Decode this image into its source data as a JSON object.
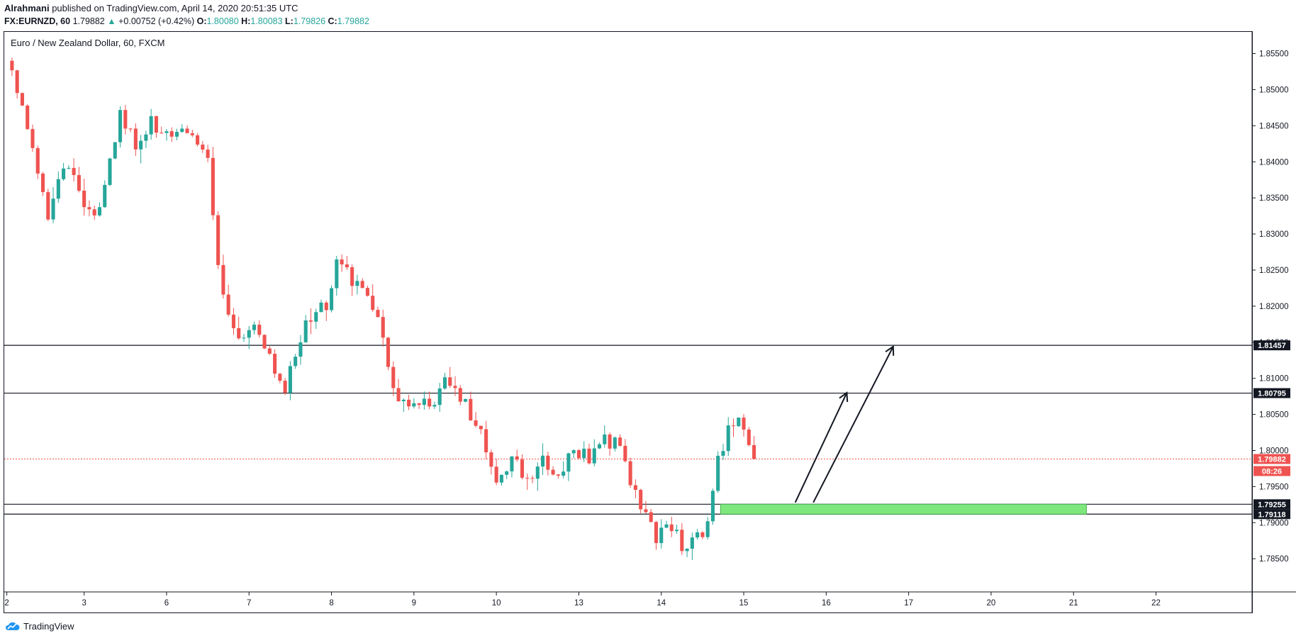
{
  "header": {
    "author": "Alrahmani",
    "published_text": "published on TradingView.com, April 14, 2020 20:51:35 UTC"
  },
  "ohlc": {
    "symbol": "FX:EURNZD, 60",
    "last": "1.79882",
    "change": "+0.00752 (+0.42%)",
    "o_label": "O:",
    "o_value": "1.80080",
    "h_label": "H:",
    "h_value": "1.80083",
    "l_label": "L:",
    "l_value": "1.79826",
    "c_label": "C:",
    "c_value": "1.79882"
  },
  "footer": {
    "brand": "TradingView"
  },
  "colors": {
    "up": "#26a69a",
    "down": "#ef5350",
    "zone": "#7ee87e",
    "zone_border": "#4caf50",
    "price_line": "#ef5350",
    "level_line": "#131722"
  },
  "chart_data": {
    "type": "candlestick",
    "title": "Euro / New Zealand Dollar, 60, FXCM",
    "instrument": "EUR/NZD",
    "timeframe": "60",
    "ylim": [
      1.7805,
      1.858
    ],
    "y_ticks": [
      "1.78500",
      "1.79000",
      "1.79500",
      "1.80000",
      "1.80500",
      "1.81000",
      "1.81500",
      "1.82000",
      "1.82500",
      "1.83000",
      "1.83500",
      "1.84000",
      "1.84500",
      "1.85000",
      "1.85500"
    ],
    "x_ticks": [
      {
        "label": "2",
        "bar": -1
      },
      {
        "label": "3",
        "bar": 14
      },
      {
        "label": "6",
        "bar": 30
      },
      {
        "label": "7",
        "bar": 46
      },
      {
        "label": "8",
        "bar": 62
      },
      {
        "label": "9",
        "bar": 78
      },
      {
        "label": "10",
        "bar": 94
      },
      {
        "label": "13",
        "bar": 110
      },
      {
        "label": "14",
        "bar": 126
      },
      {
        "label": "15",
        "bar": 142
      },
      {
        "label": "16",
        "bar": 158
      },
      {
        "label": "17",
        "bar": 174
      },
      {
        "label": "20",
        "bar": 190
      },
      {
        "label": "21",
        "bar": 206
      },
      {
        "label": "22",
        "bar": 222
      }
    ],
    "x_range": [
      -1.5,
      240.5
    ],
    "close_path": [
      [
        0,
        1.8525
      ],
      [
        3,
        1.845
      ],
      [
        7,
        1.833
      ],
      [
        11,
        1.84
      ],
      [
        14,
        1.8335
      ],
      [
        17,
        1.833
      ],
      [
        21,
        1.847
      ],
      [
        24,
        1.842
      ],
      [
        27,
        1.8455
      ],
      [
        30,
        1.844
      ],
      [
        35,
        1.844
      ],
      [
        38,
        1.841
      ],
      [
        40,
        1.825
      ],
      [
        42,
        1.819
      ],
      [
        44,
        1.815
      ],
      [
        47,
        1.8175
      ],
      [
        50,
        1.813
      ],
      [
        53,
        1.809
      ],
      [
        57,
        1.818
      ],
      [
        61,
        1.82
      ],
      [
        63,
        1.827
      ],
      [
        66,
        1.824
      ],
      [
        69,
        1.822
      ],
      [
        71,
        1.818
      ],
      [
        73,
        1.812
      ],
      [
        75,
        1.806
      ],
      [
        78,
        1.806
      ],
      [
        82,
        1.807
      ],
      [
        85,
        1.81
      ],
      [
        88,
        1.806
      ],
      [
        91,
        1.802
      ],
      [
        94,
        1.796
      ],
      [
        97,
        1.799
      ],
      [
        100,
        1.796
      ],
      [
        103,
        1.7995
      ],
      [
        106,
        1.796
      ],
      [
        109,
        1.8
      ],
      [
        112,
        1.799
      ],
      [
        115,
        1.8015
      ],
      [
        118,
        1.801
      ],
      [
        120,
        1.795
      ],
      [
        122,
        1.792
      ],
      [
        125,
        1.788
      ],
      [
        128,
        1.79
      ],
      [
        130,
        1.787
      ],
      [
        133,
        1.788
      ],
      [
        135,
        1.79
      ],
      [
        137,
        1.799
      ],
      [
        140,
        1.804
      ],
      [
        142,
        1.803
      ],
      [
        144,
        1.799
      ]
    ],
    "levels": [
      {
        "value": 1.81457,
        "label": "1.81457"
      },
      {
        "value": 1.80795,
        "label": "1.80795"
      },
      {
        "value": 1.79255,
        "label": "1.79255"
      },
      {
        "value": 1.79118,
        "label": "1.79118"
      }
    ],
    "current_price": {
      "value": 1.79882,
      "label": "1.79882",
      "countdown": "08:26"
    },
    "demand_zone": {
      "bar_start": 137.5,
      "bar_end": 208.5,
      "low": 1.79118,
      "high": 1.79255
    },
    "arrows": [
      {
        "from_bar": 152,
        "from_price": 1.7928,
        "to_bar": 162,
        "to_price": 1.808
      },
      {
        "from_bar": 155.5,
        "from_price": 1.7928,
        "to_bar": 171,
        "to_price": 1.8144
      }
    ]
  }
}
